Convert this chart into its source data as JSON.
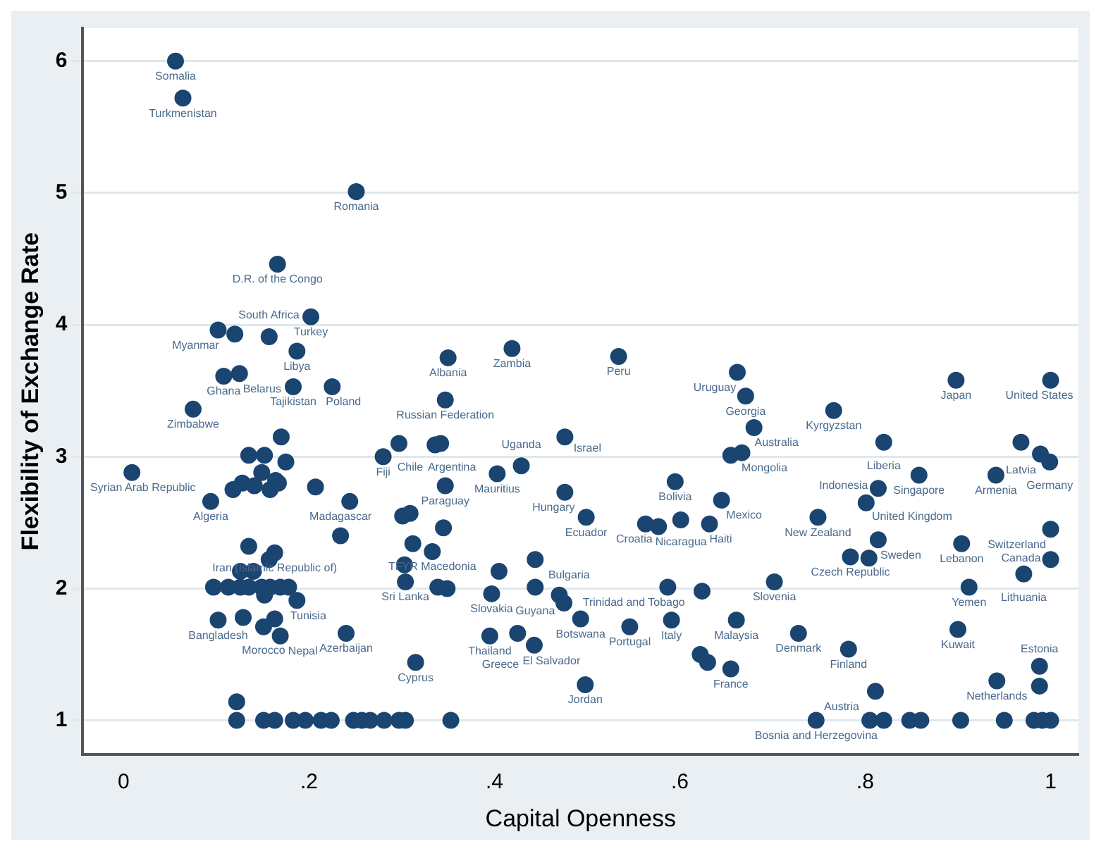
{
  "chart_data": {
    "type": "scatter",
    "xlabel": "Capital Openness",
    "ylabel": "Flexibility of Exchange Rate",
    "xlim": [
      -0.044,
      1.03
    ],
    "ylim": [
      0.74,
      6.25
    ],
    "xticks": [
      0,
      {
        "value": 0.2,
        "label": ".2"
      },
      {
        "value": 0.4,
        "label": ".4"
      },
      {
        "value": 0.6,
        "label": ".6"
      },
      {
        "value": 0.8,
        "label": ".8"
      },
      1
    ],
    "yticks": [
      1,
      2,
      3,
      4,
      5,
      6
    ],
    "grid": "y",
    "legend": false,
    "marker": "circle",
    "series": [
      {
        "color": "#1b4571",
        "x": [
          0.056,
          0.064,
          0.251,
          0.166,
          0.202,
          0.102,
          0.12,
          0.157,
          0.187,
          0.108,
          0.125,
          0.183,
          0.225,
          0.075,
          0.009,
          0.17,
          0.135,
          0.152,
          0.175,
          0.149,
          0.128,
          0.118,
          0.141,
          0.164,
          0.158,
          0.167,
          0.207,
          0.244,
          0.094,
          0.234,
          0.28,
          0.297,
          0.157,
          0.163,
          0.135,
          0.126,
          0.14,
          0.097,
          0.113,
          0.126,
          0.135,
          0.149,
          0.158,
          0.169,
          0.178,
          0.152,
          0.187,
          0.102,
          0.129,
          0.151,
          0.163,
          0.169,
          0.24,
          0.315,
          0.122,
          0.122,
          0.151,
          0.163,
          0.183,
          0.196,
          0.213,
          0.224,
          0.248,
          0.257,
          0.266,
          0.281,
          0.297,
          0.304,
          0.353,
          0.35,
          0.419,
          0.534,
          0.347,
          0.336,
          0.342,
          0.347,
          0.403,
          0.429,
          0.476,
          0.476,
          0.499,
          0.301,
          0.309,
          0.345,
          0.333,
          0.312,
          0.303,
          0.304,
          0.339,
          0.349,
          0.444,
          0.405,
          0.397,
          0.444,
          0.47,
          0.475,
          0.493,
          0.395,
          0.425,
          0.443,
          0.546,
          0.498,
          0.563,
          0.595,
          0.577,
          0.601,
          0.645,
          0.632,
          0.587,
          0.624,
          0.591,
          0.661,
          0.622,
          0.63,
          0.655,
          0.662,
          0.671,
          0.68,
          0.655,
          0.667,
          0.766,
          0.898,
          1.0,
          0.82,
          0.858,
          0.941,
          0.968,
          0.989,
          0.999,
          0.814,
          0.801,
          0.749,
          0.814,
          0.784,
          0.804,
          0.904,
          1.0,
          1.0,
          0.971,
          0.912,
          0.702,
          0.728,
          0.782,
          0.9,
          0.988,
          0.988,
          0.942,
          0.811,
          0.747,
          0.805,
          0.82,
          0.848,
          0.86,
          0.903,
          0.95,
          0.982,
          0.991,
          1.0
        ],
        "values": [
          6.0,
          5.72,
          5.01,
          4.46,
          4.06,
          3.96,
          3.93,
          3.91,
          3.8,
          3.61,
          3.63,
          3.53,
          3.53,
          3.36,
          2.88,
          3.15,
          3.01,
          3.01,
          2.96,
          2.88,
          2.8,
          2.75,
          2.78,
          2.82,
          2.75,
          2.8,
          2.77,
          2.66,
          2.66,
          2.4,
          3.0,
          3.1,
          2.22,
          2.27,
          2.32,
          2.13,
          2.13,
          2.01,
          2.01,
          2.01,
          2.01,
          2.01,
          2.01,
          2.01,
          2.01,
          1.95,
          1.91,
          1.76,
          1.78,
          1.71,
          1.77,
          1.64,
          1.66,
          1.44,
          1.14,
          1.0,
          1.0,
          1.0,
          1.0,
          1.0,
          1.0,
          1.0,
          1.0,
          1.0,
          1.0,
          1.0,
          1.0,
          1.0,
          1.0,
          3.75,
          3.82,
          3.76,
          3.43,
          3.09,
          3.1,
          2.78,
          2.87,
          2.93,
          3.15,
          2.73,
          2.54,
          2.55,
          2.57,
          2.46,
          2.28,
          2.34,
          2.18,
          2.05,
          2.01,
          2.0,
          2.22,
          2.13,
          1.96,
          2.01,
          1.95,
          1.89,
          1.77,
          1.64,
          1.66,
          1.57,
          1.71,
          1.27,
          2.49,
          2.81,
          2.47,
          2.52,
          2.67,
          2.49,
          2.01,
          1.98,
          1.76,
          1.76,
          1.5,
          1.44,
          1.39,
          3.64,
          3.46,
          3.22,
          3.01,
          3.03,
          3.35,
          3.58,
          3.58,
          3.11,
          2.86,
          2.86,
          3.11,
          3.02,
          2.96,
          2.76,
          2.65,
          2.54,
          2.37,
          2.24,
          2.23,
          2.34,
          2.45,
          2.22,
          2.11,
          2.01,
          2.05,
          1.66,
          1.54,
          1.69,
          1.41,
          1.26,
          1.3,
          1.22,
          1.0,
          1.0,
          1.0,
          1.0,
          1.0,
          1.0,
          1.0,
          1.0,
          1.0,
          1.0
        ]
      }
    ],
    "annotations": [
      {
        "text": "Somalia",
        "x": 0.056,
        "y": 6.0
      },
      {
        "text": "Turkmenistan",
        "x": 0.064,
        "y": 5.72
      },
      {
        "text": "Romania",
        "x": 0.251,
        "y": 5.01
      },
      {
        "text": "D.R. of the Congo",
        "x": 0.166,
        "y": 4.46
      },
      {
        "text": "Turkey",
        "x": 0.202,
        "y": 4.06
      },
      {
        "text": "Myanmar",
        "x": 0.102,
        "y": 3.96
      },
      {
        "text": "South Africa",
        "x": 0.157,
        "y": 3.91
      },
      {
        "text": "Libya",
        "x": 0.187,
        "y": 3.8
      },
      {
        "text": "Ghana",
        "x": 0.108,
        "y": 3.61
      },
      {
        "text": "Belarus",
        "x": 0.125,
        "y": 3.63
      },
      {
        "text": "Tajikistan",
        "x": 0.183,
        "y": 3.53
      },
      {
        "text": "Poland",
        "x": 0.225,
        "y": 3.53
      },
      {
        "text": "Zimbabwe",
        "x": 0.075,
        "y": 3.36
      },
      {
        "text": "Syrian Arab Republic",
        "x": 0.009,
        "y": 2.88
      },
      {
        "text": "Algeria",
        "x": 0.094,
        "y": 2.66
      },
      {
        "text": "Madagascar",
        "x": 0.234,
        "y": 2.66
      },
      {
        "text": "Fiji",
        "x": 0.28,
        "y": 3.0
      },
      {
        "text": "Chile",
        "x": 0.297,
        "y": 3.1
      },
      {
        "text": "Iran (Islamic Republic of)",
        "x": 0.163,
        "y": 2.27
      },
      {
        "text": "Bangladesh",
        "x": 0.102,
        "y": 1.76
      },
      {
        "text": "Morocco",
        "x": 0.151,
        "y": 1.71
      },
      {
        "text": "Tunisia",
        "x": 0.187,
        "y": 1.91
      },
      {
        "text": "Nepal",
        "x": 0.169,
        "y": 1.64
      },
      {
        "text": "Azerbaijan",
        "x": 0.24,
        "y": 1.66
      },
      {
        "text": "Cyprus",
        "x": 0.315,
        "y": 1.44
      },
      {
        "text": "Albania",
        "x": 0.35,
        "y": 3.75
      },
      {
        "text": "Zambia",
        "x": 0.419,
        "y": 3.82
      },
      {
        "text": "Peru",
        "x": 0.534,
        "y": 3.76
      },
      {
        "text": "Russian Federation",
        "x": 0.347,
        "y": 3.43
      },
      {
        "text": "Argentina",
        "x": 0.342,
        "y": 3.1
      },
      {
        "text": "Paraguay",
        "x": 0.347,
        "y": 2.78
      },
      {
        "text": "Mauritius",
        "x": 0.403,
        "y": 2.87
      },
      {
        "text": "Uganda",
        "x": 0.429,
        "y": 2.93
      },
      {
        "text": "Israel",
        "x": 0.476,
        "y": 3.15
      },
      {
        "text": "Hungary",
        "x": 0.476,
        "y": 2.73
      },
      {
        "text": "Ecuador",
        "x": 0.499,
        "y": 2.54
      },
      {
        "text": "TFYR Macedonia",
        "x": 0.333,
        "y": 2.28
      },
      {
        "text": "Sri Lanka",
        "x": 0.304,
        "y": 2.05
      },
      {
        "text": "Bulgaria",
        "x": 0.444,
        "y": 2.22
      },
      {
        "text": "Slovakia",
        "x": 0.397,
        "y": 1.96
      },
      {
        "text": "Guyana",
        "x": 0.444,
        "y": 2.01
      },
      {
        "text": "Thailand",
        "x": 0.395,
        "y": 1.64
      },
      {
        "text": "El Salvador",
        "x": 0.425,
        "y": 1.66
      },
      {
        "text": "Greece",
        "x": 0.443,
        "y": 1.57
      },
      {
        "text": "Botswana",
        "x": 0.493,
        "y": 1.77
      },
      {
        "text": "Portugal",
        "x": 0.546,
        "y": 1.71
      },
      {
        "text": "Jordan",
        "x": 0.498,
        "y": 1.27
      },
      {
        "text": "Croatia",
        "x": 0.563,
        "y": 2.49
      },
      {
        "text": "Bolivia",
        "x": 0.595,
        "y": 2.81
      },
      {
        "text": "Nicaragua",
        "x": 0.577,
        "y": 2.47
      },
      {
        "text": "Mexico",
        "x": 0.645,
        "y": 2.67
      },
      {
        "text": "Haiti",
        "x": 0.632,
        "y": 2.49
      },
      {
        "text": "Trinidad and Tobago",
        "x": 0.587,
        "y": 2.01
      },
      {
        "text": "Italy",
        "x": 0.591,
        "y": 1.76
      },
      {
        "text": "Malaysia",
        "x": 0.661,
        "y": 1.76
      },
      {
        "text": "France",
        "x": 0.655,
        "y": 1.39
      },
      {
        "text": "Uruguay",
        "x": 0.662,
        "y": 3.64
      },
      {
        "text": "Georgia",
        "x": 0.671,
        "y": 3.46
      },
      {
        "text": "Australia",
        "x": 0.68,
        "y": 3.22
      },
      {
        "text": "Mongolia",
        "x": 0.667,
        "y": 3.03
      },
      {
        "text": "Kyrgyzstan",
        "x": 0.766,
        "y": 3.35
      },
      {
        "text": "Japan",
        "x": 0.898,
        "y": 3.58
      },
      {
        "text": "United States",
        "x": 1.0,
        "y": 3.58
      },
      {
        "text": "Liberia",
        "x": 0.82,
        "y": 3.11
      },
      {
        "text": "Singapore",
        "x": 0.858,
        "y": 2.86
      },
      {
        "text": "Armenia",
        "x": 0.941,
        "y": 2.86
      },
      {
        "text": "Latvia",
        "x": 0.968,
        "y": 3.11
      },
      {
        "text": "Germany",
        "x": 0.999,
        "y": 2.96
      },
      {
        "text": "United Kingdom",
        "x": 0.814,
        "y": 2.76
      },
      {
        "text": "Indonesia",
        "x": 0.801,
        "y": 2.65
      },
      {
        "text": "New Zealand",
        "x": 0.749,
        "y": 2.54
      },
      {
        "text": "Sweden",
        "x": 0.814,
        "y": 2.37
      },
      {
        "text": "Czech Republic",
        "x": 0.784,
        "y": 2.24
      },
      {
        "text": "Lebanon",
        "x": 0.904,
        "y": 2.34
      },
      {
        "text": "Switzerland",
        "x": 1.0,
        "y": 2.45
      },
      {
        "text": "Canada",
        "x": 1.0,
        "y": 2.22
      },
      {
        "text": "Lithuania",
        "x": 0.971,
        "y": 2.11
      },
      {
        "text": "Yemen",
        "x": 0.912,
        "y": 2.01
      },
      {
        "text": "Slovenia",
        "x": 0.702,
        "y": 2.05
      },
      {
        "text": "Denmark",
        "x": 0.728,
        "y": 1.66
      },
      {
        "text": "Finland",
        "x": 0.782,
        "y": 1.54
      },
      {
        "text": "Kuwait",
        "x": 0.9,
        "y": 1.69
      },
      {
        "text": "Estonia",
        "x": 0.988,
        "y": 1.41
      },
      {
        "text": "Netherlands",
        "x": 0.942,
        "y": 1.3
      },
      {
        "text": "Austria",
        "x": 0.811,
        "y": 1.22
      },
      {
        "text": "Bosnia and Herzegovina",
        "x": 0.747,
        "y": 1.0
      }
    ]
  }
}
